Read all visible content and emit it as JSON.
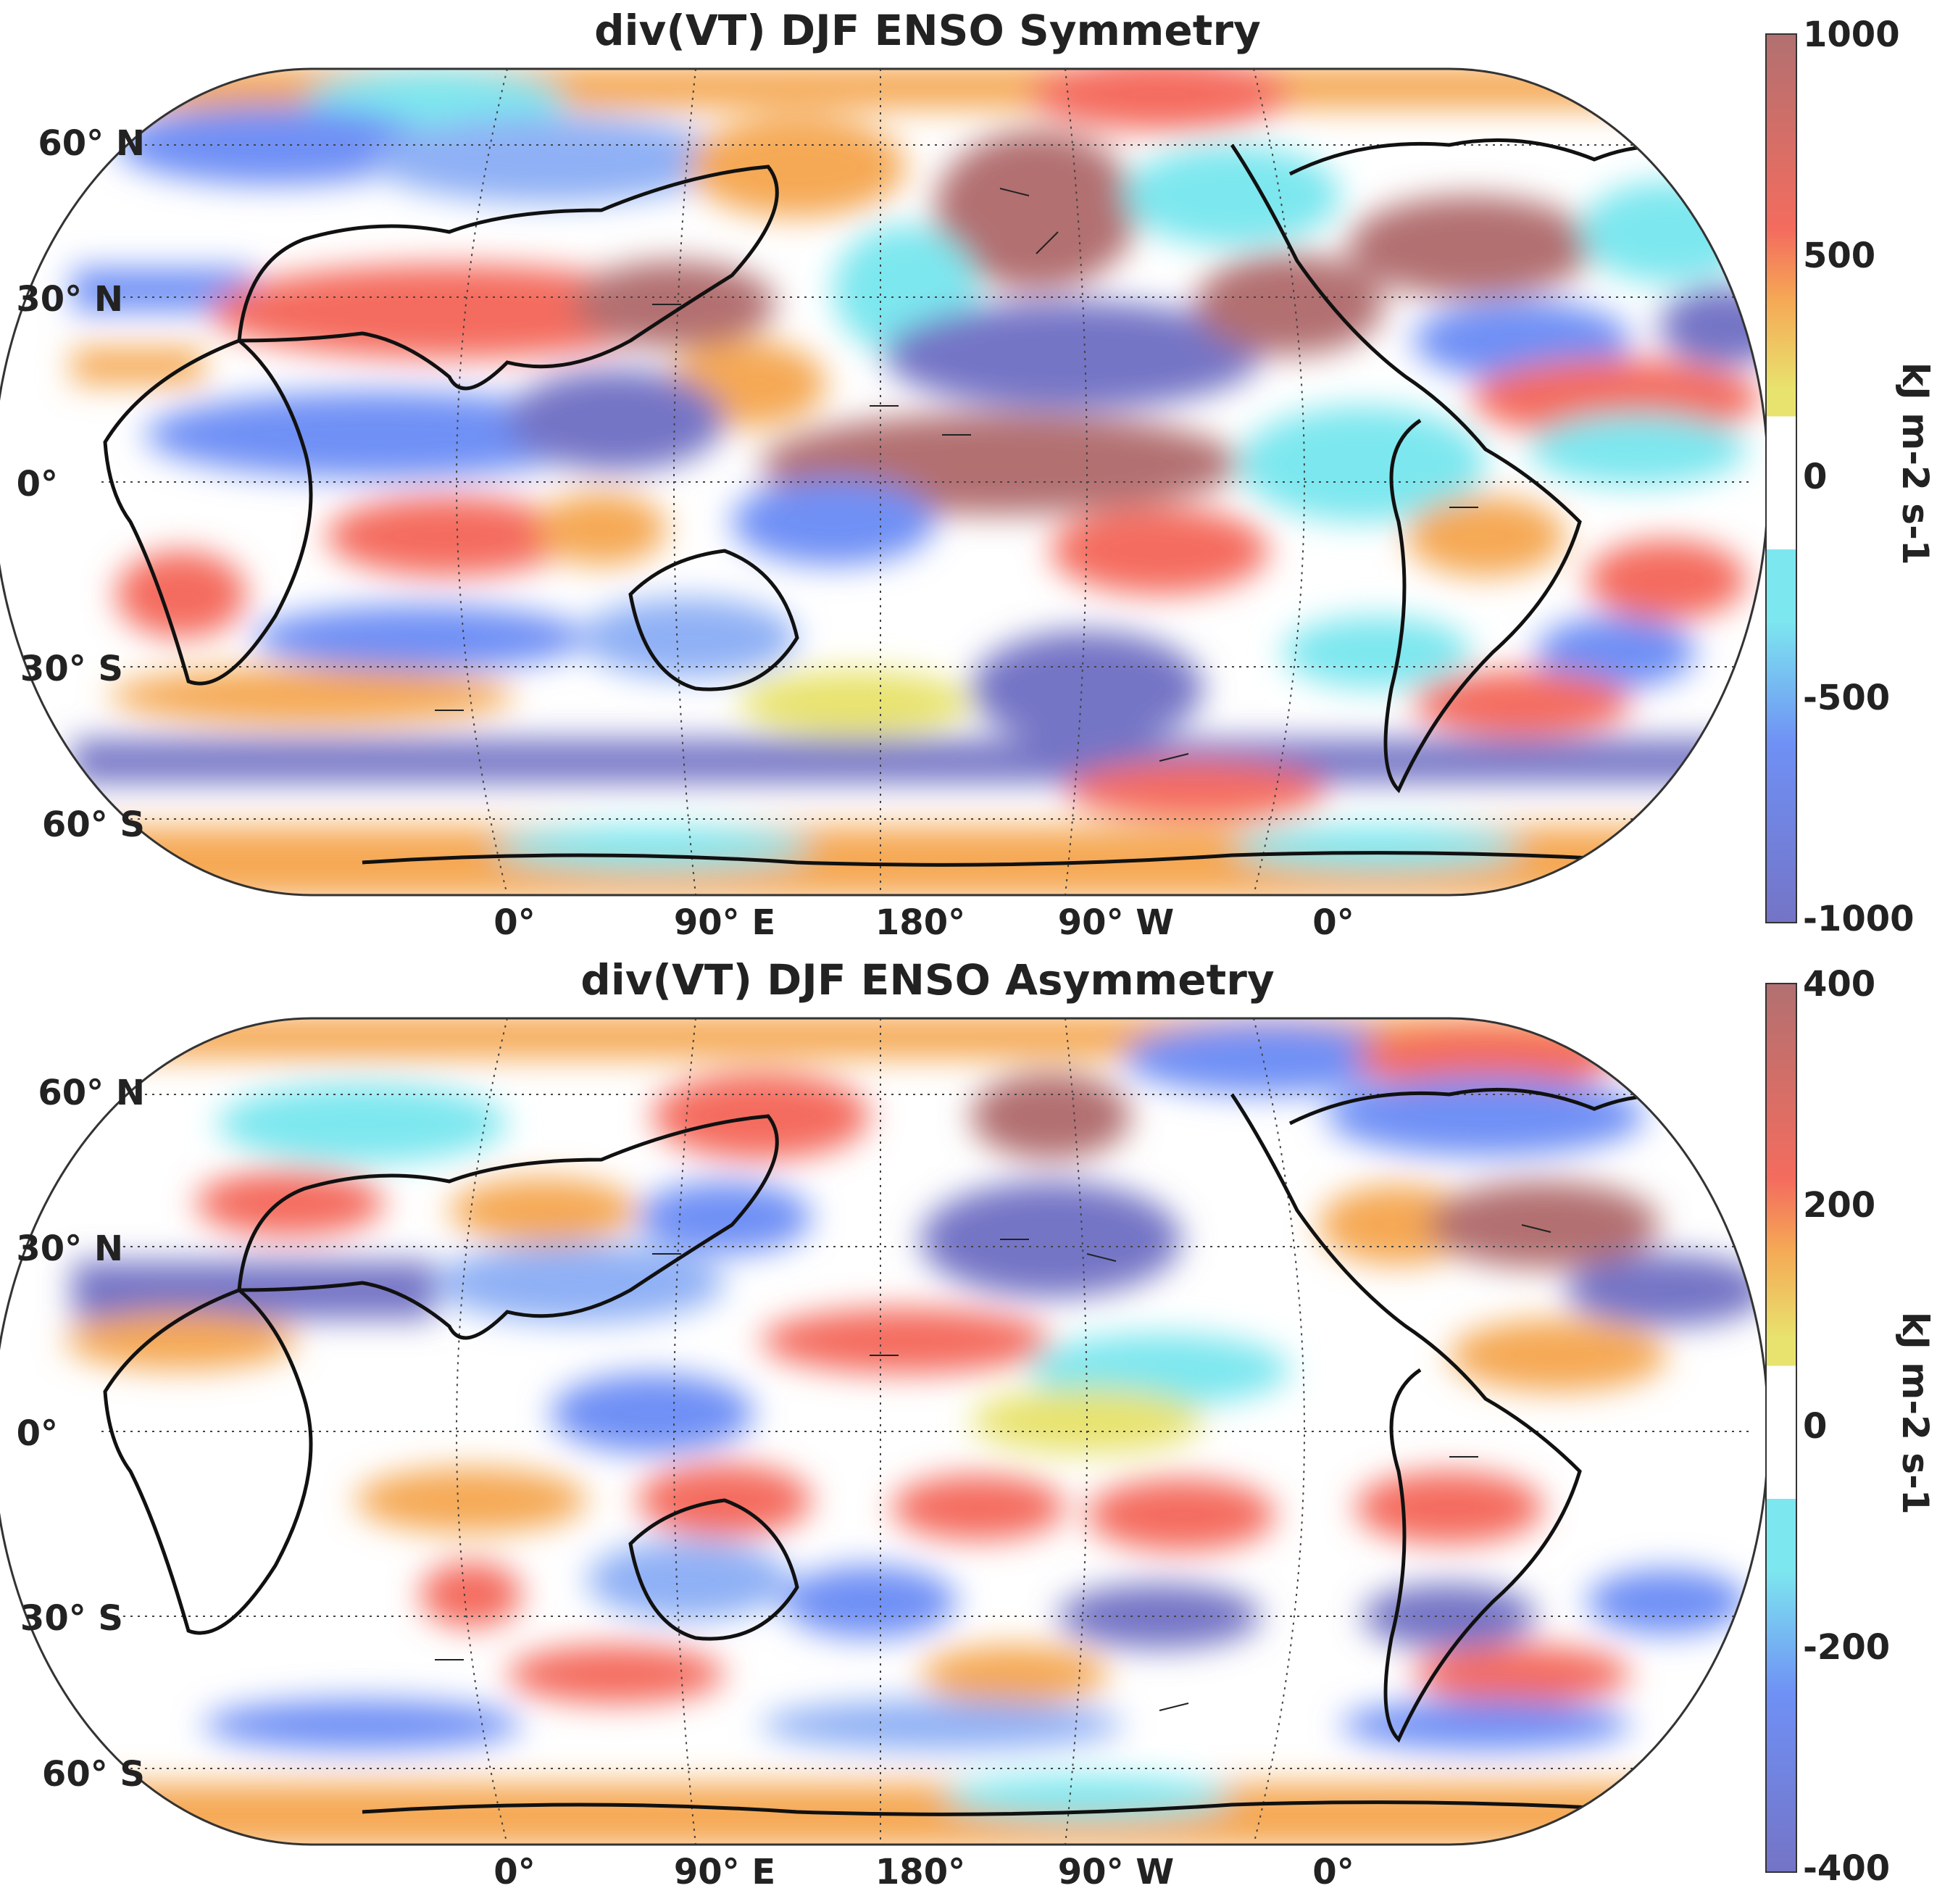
{
  "colors": {
    "deep_red": "#b27071",
    "red": "#f46c5e",
    "orange": "#f5a955",
    "yellow": "#e8e36e",
    "white": "#ffffff",
    "cyan": "#7de7ef",
    "blue": "#6f90f5",
    "deep_blue": "#7474c6",
    "coast": "#111111"
  },
  "panels": [
    {
      "title": "div(VT) DJF ENSO Symmetry",
      "lat_labels": [
        "60° N",
        "30° N",
        "0°",
        "30° S",
        "60° S"
      ],
      "lon_labels": [
        "0°",
        "90° E",
        "180°",
        "90° W",
        "0°"
      ],
      "colorbar": {
        "ticks": [
          "1000",
          "500",
          "0",
          "-500",
          "-1000"
        ],
        "min": -1000,
        "max": 1000,
        "unit_label": "kJ m-2 s-1"
      }
    },
    {
      "title": "div(VT) DJF ENSO Asymmetry",
      "lat_labels": [
        "60° N",
        "30° N",
        "0°",
        "30° S",
        "60° S"
      ],
      "lon_labels": [
        "0°",
        "90° E",
        "180°",
        "90° W",
        "0°"
      ],
      "colorbar": {
        "ticks": [
          "400",
          "200",
          "0",
          "-200",
          "-400"
        ],
        "min": -400,
        "max": 400,
        "unit_label": "kJ m-2 s-1"
      }
    }
  ]
}
